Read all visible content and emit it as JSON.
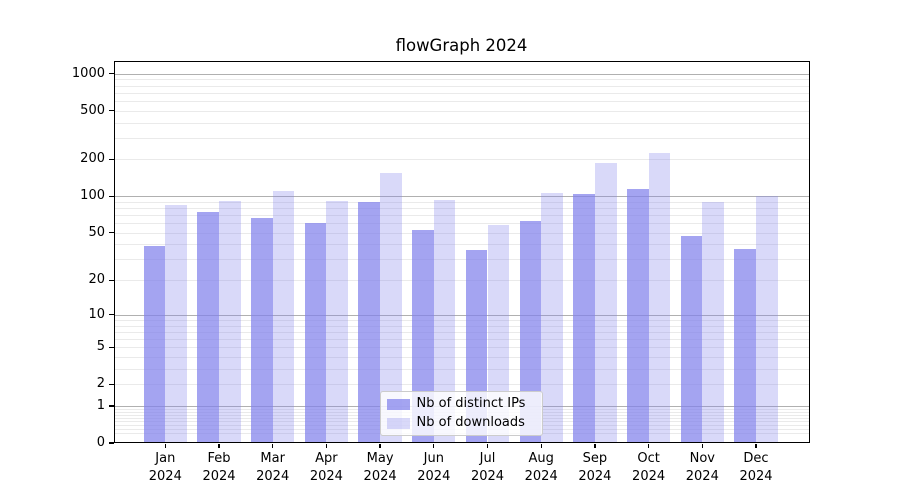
{
  "chart_data": {
    "type": "bar",
    "title": "flowGraph 2024",
    "categories": [
      "Jan",
      "Feb",
      "Mar",
      "Apr",
      "May",
      "Jun",
      "Jul",
      "Aug",
      "Sep",
      "Oct",
      "Nov",
      "Dec"
    ],
    "x_year_label": "2024",
    "series": [
      {
        "name": "Nb of distinct IPs",
        "color": "rgba(129,129,236,0.72)",
        "values": [
          39,
          74,
          66,
          60,
          89,
          53,
          36,
          63,
          105,
          115,
          47,
          37
        ]
      },
      {
        "name": "Nb of downloads",
        "color": "rgba(129,129,236,0.30)",
        "values": [
          84,
          91,
          111,
          91,
          156,
          93,
          58,
          106,
          187,
          225,
          90,
          100
        ]
      }
    ],
    "y_ticks": [
      0,
      1,
      2,
      5,
      10,
      20,
      50,
      100,
      200,
      500,
      1000
    ],
    "y_scale": "log10(1+value)",
    "ylim": [
      0,
      1265
    ],
    "grid": true,
    "legend_position": "lower center",
    "colors": {
      "bar_base": "#8181ec",
      "major_grid": "#b0b0b0",
      "minor_grid": "#eaeaea",
      "axis": "#000000",
      "legend_border": "#cccccc"
    }
  }
}
